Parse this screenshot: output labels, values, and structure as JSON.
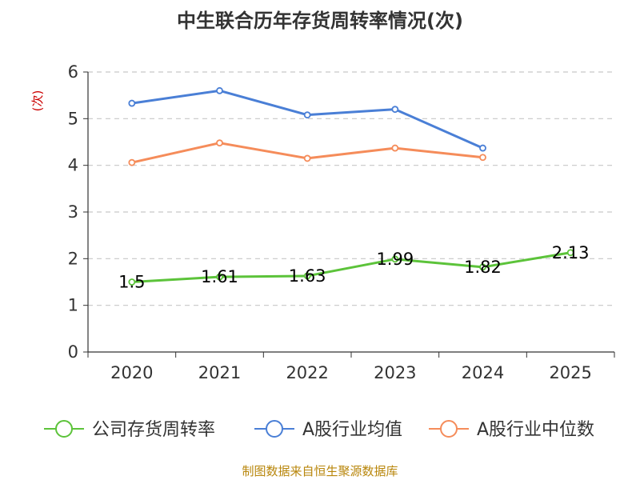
{
  "chart_data": {
    "type": "line",
    "title": "中生联合历年存货周转率情况(次)",
    "ylabel": "(次)",
    "xlabel": "",
    "categories": [
      "2020",
      "2021",
      "2022",
      "2023",
      "2024",
      "2025"
    ],
    "ylim": [
      0,
      6
    ],
    "yticks": [
      "0",
      "1",
      "2",
      "3",
      "4",
      "5",
      "6"
    ],
    "grid": true,
    "legend": "bottom",
    "series": [
      {
        "name": "公司存货周转率",
        "color": "#5cc33a",
        "values": [
          1.5,
          1.61,
          1.63,
          1.99,
          1.82,
          2.13
        ],
        "labels": [
          "1.5",
          "1.61",
          "1.63",
          "1.99",
          "1.82",
          "2.13"
        ]
      },
      {
        "name": "A股行业均值",
        "color": "#4a7fd6",
        "values": [
          5.33,
          5.6,
          5.08,
          5.2,
          4.37,
          null
        ]
      },
      {
        "name": "A股行业中位数",
        "color": "#f58c5a",
        "values": [
          4.06,
          4.48,
          4.15,
          4.37,
          4.17,
          null
        ]
      }
    ],
    "source": "制图数据来自恒生聚源数据库"
  }
}
